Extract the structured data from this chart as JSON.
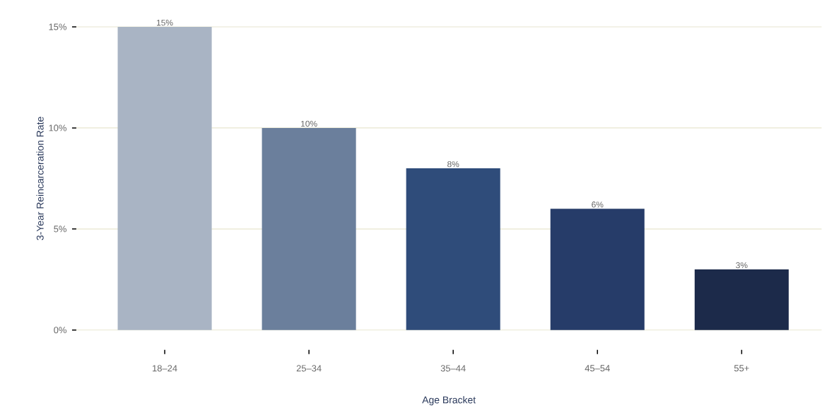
{
  "chart_data": {
    "type": "bar",
    "xlabel": "Age Bracket",
    "ylabel": "3-Year Reincarceration Rate",
    "categories": [
      "18–24",
      "25–34",
      "35–44",
      "45–54",
      "55+"
    ],
    "values": [
      15,
      10,
      8,
      6,
      3
    ],
    "value_labels": [
      "15%",
      "10%",
      "8%",
      "6%",
      "3%"
    ],
    "colors": [
      "#a9b4c4",
      "#6b7f9c",
      "#2f4c7a",
      "#263c69",
      "#1c2a4a"
    ],
    "ylim": [
      0,
      15
    ],
    "yticks": [
      {
        "value": 0,
        "label": "0%"
      },
      {
        "value": 5,
        "label": "5%"
      },
      {
        "value": 10,
        "label": "10%"
      },
      {
        "value": 15,
        "label": "15%"
      }
    ],
    "grid": "y"
  }
}
